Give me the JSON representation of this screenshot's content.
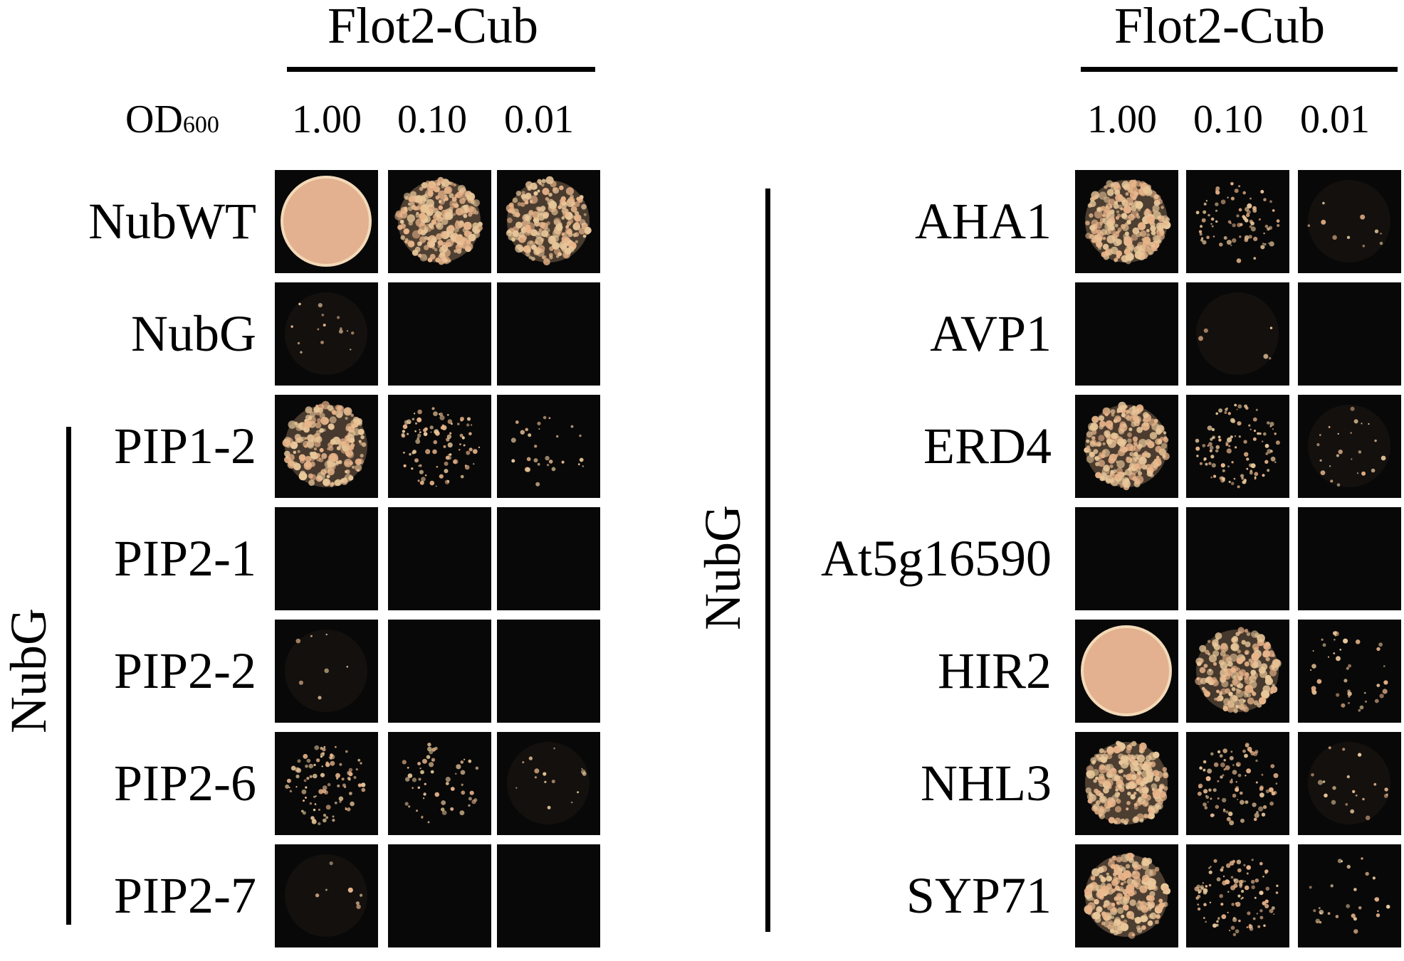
{
  "left_panel": {
    "header": "Flot2-Cub",
    "od_label": "OD",
    "od_sub": "600",
    "concentrations": [
      "1.00",
      "0.10",
      "0.01"
    ],
    "group_label": "NubG",
    "rows": [
      {
        "label": "NubWT",
        "growth": [
          1.0,
          0.9,
          0.75
        ]
      },
      {
        "label": "NubG",
        "growth": [
          0.05,
          0.0,
          0.0
        ]
      },
      {
        "label": "PIP1-2",
        "growth": [
          0.7,
          0.35,
          0.1
        ]
      },
      {
        "label": "PIP2-1",
        "growth": [
          0.0,
          0.0,
          0.0
        ]
      },
      {
        "label": "PIP2-2",
        "growth": [
          0.02,
          0.0,
          0.0
        ]
      },
      {
        "label": "PIP2-6",
        "growth": [
          0.35,
          0.2,
          0.05
        ]
      },
      {
        "label": "PIP2-7",
        "growth": [
          0.02,
          0.0,
          0.0
        ]
      }
    ]
  },
  "right_panel": {
    "header": "Flot2-Cub",
    "concentrations": [
      "1.00",
      "0.10",
      "0.01"
    ],
    "group_label": "NubG",
    "rows": [
      {
        "label": "AHA1",
        "growth": [
          0.85,
          0.3,
          0.03
        ]
      },
      {
        "label": "AVP1",
        "growth": [
          0.0,
          0.01,
          0.0
        ]
      },
      {
        "label": "ERD4",
        "growth": [
          0.8,
          0.4,
          0.08
        ]
      },
      {
        "label": "At5g16590",
        "growth": [
          0.0,
          0.0,
          0.0
        ]
      },
      {
        "label": "HIR2",
        "growth": [
          0.95,
          0.65,
          0.15
        ]
      },
      {
        "label": "NHL3",
        "growth": [
          0.85,
          0.35,
          0.07
        ]
      },
      {
        "label": "SYP71",
        "growth": [
          0.85,
          0.4,
          0.1
        ]
      }
    ]
  },
  "colors": {
    "background": "#ffffff",
    "cell_bg": "#080808",
    "colony": "#e8c79a",
    "colony_dense": "#e8b48a"
  }
}
